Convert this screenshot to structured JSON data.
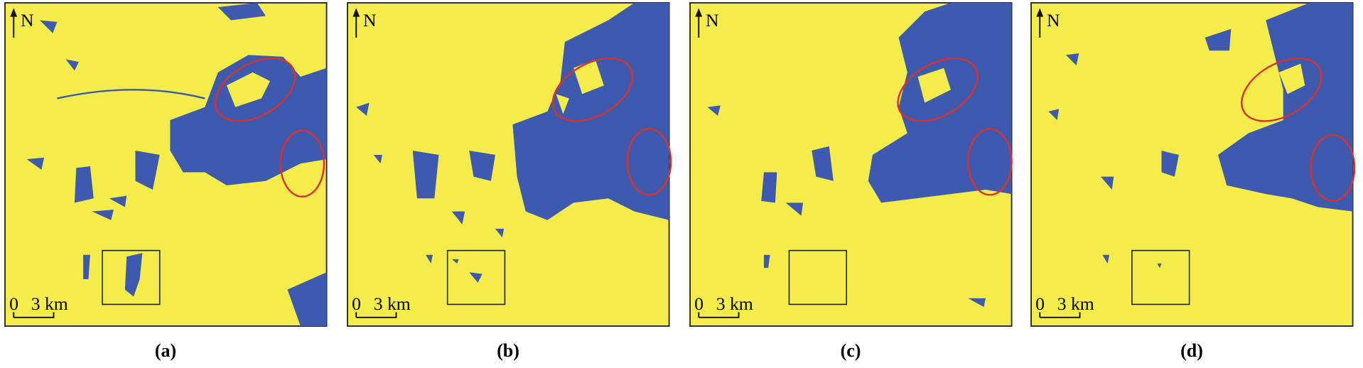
{
  "panels": [
    {
      "label": "(a)",
      "north": "N",
      "scale_start": "0",
      "scale_end": "3 km"
    },
    {
      "label": "(b)",
      "north": "N",
      "scale_start": "0",
      "scale_end": "3 km"
    },
    {
      "label": "(c)",
      "north": "N",
      "scale_start": "0",
      "scale_end": "3 km"
    },
    {
      "label": "(d)",
      "north": "N",
      "scale_start": "0",
      "scale_end": "3 km"
    }
  ]
}
